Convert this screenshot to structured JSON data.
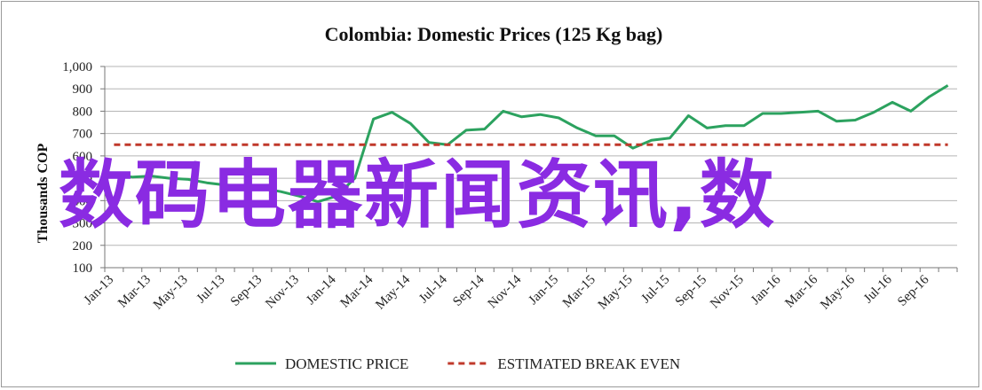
{
  "chart_data": {
    "type": "line",
    "title": "Colombia:  Domestic Prices (125 Kg bag)",
    "ylabel": "Thousands COP",
    "xlabel": "",
    "ylim": [
      100,
      1000
    ],
    "yticks": [
      100,
      200,
      300,
      400,
      500,
      600,
      700,
      800,
      900,
      1000
    ],
    "ytick_labels": [
      "100",
      "200",
      "300",
      "400",
      "500",
      "600",
      "700",
      "800",
      "900",
      "1,000"
    ],
    "xtick_labels": [
      "Jan-13",
      "Mar-13",
      "May-13",
      "Jul-13",
      "Sep-13",
      "Nov-13",
      "Jan-14",
      "Mar-14",
      "May-14",
      "Jul-14",
      "Sep-14",
      "Nov-14",
      "Jan-15",
      "Mar-15",
      "May-15",
      "Jul-15",
      "Sep-15",
      "Nov-15",
      "Jan-16",
      "Mar-16",
      "May-16",
      "Jul-16",
      "Sep-16"
    ],
    "x": [
      "Jan-13",
      "Feb-13",
      "Mar-13",
      "Apr-13",
      "May-13",
      "Jun-13",
      "Jul-13",
      "Aug-13",
      "Sep-13",
      "Oct-13",
      "Nov-13",
      "Dec-13",
      "Jan-14",
      "Feb-14",
      "Mar-14",
      "Apr-14",
      "May-14",
      "Jun-14",
      "Jul-14",
      "Aug-14",
      "Sep-14",
      "Oct-14",
      "Nov-14",
      "Dec-14",
      "Jan-15",
      "Feb-15",
      "Mar-15",
      "Apr-15",
      "May-15",
      "Jun-15",
      "Jul-15",
      "Aug-15",
      "Sep-15",
      "Oct-15",
      "Nov-15",
      "Dec-15",
      "Jan-16",
      "Feb-16",
      "Mar-16",
      "Apr-16",
      "May-16",
      "Jun-16",
      "Jul-16",
      "Aug-16",
      "Sep-16",
      "Oct-16"
    ],
    "series": [
      {
        "name": "DOMESTIC PRICE",
        "color": "#2ca25f",
        "style": "solid",
        "values": [
          520,
          505,
          510,
          500,
          495,
          480,
          470,
          465,
          455,
          440,
          420,
          395,
          420,
          500,
          765,
          795,
          745,
          660,
          650,
          715,
          720,
          800,
          775,
          785,
          770,
          725,
          690,
          690,
          635,
          670,
          680,
          780,
          725,
          735,
          735,
          790,
          790,
          795,
          800,
          755,
          760,
          795,
          840,
          800,
          865,
          915
        ]
      },
      {
        "name": "ESTIMATED BREAK EVEN",
        "color": "#c0392b",
        "style": "dashed",
        "values": [
          650,
          650,
          650,
          650,
          650,
          650,
          650,
          650,
          650,
          650,
          650,
          650,
          650,
          650,
          650,
          650,
          650,
          650,
          650,
          650,
          650,
          650,
          650,
          650,
          650,
          650,
          650,
          650,
          650,
          650,
          650,
          650,
          650,
          650,
          650,
          650,
          650,
          650,
          650,
          650,
          650,
          650,
          650,
          650,
          650,
          650
        ]
      }
    ],
    "grid": true,
    "legend": "bottom"
  },
  "watermark_text": "数码电器新闻资讯,数"
}
